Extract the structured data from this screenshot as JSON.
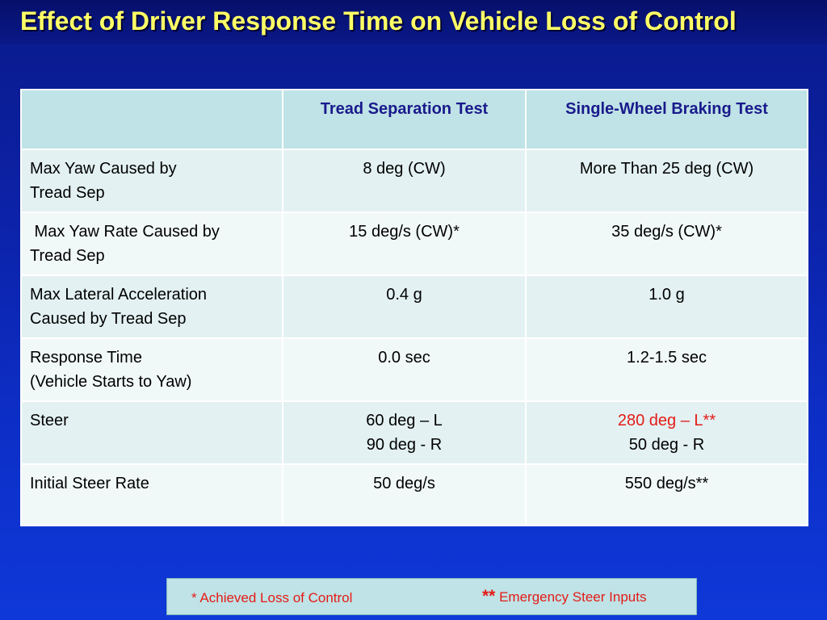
{
  "title": "Effect of Driver Response Time on Vehicle Loss of Control",
  "table": {
    "header": [
      "",
      "Tread Separation Test",
      "Single-Wheel Braking Test"
    ],
    "rows": [
      {
        "label": [
          "Max Yaw  Caused by",
          "Tread Sep"
        ],
        "tread": [
          "8 deg (CW)"
        ],
        "single": [
          "More Than 25 deg (CW)"
        ]
      },
      {
        "label": [
          " Max Yaw Rate Caused by",
          "Tread Sep"
        ],
        "tread": [
          "15 deg/s (CW)*"
        ],
        "single": [
          "35 deg/s (CW)*"
        ]
      },
      {
        "label": [
          "Max Lateral Acceleration",
          "Caused by Tread Sep"
        ],
        "tread": [
          "0.4 g"
        ],
        "single": [
          "1.0 g"
        ]
      },
      {
        "label": [
          "Response Time",
          "(Vehicle Starts to Yaw)"
        ],
        "tread": [
          "0.0 sec"
        ],
        "single": [
          "1.2-1.5 sec"
        ]
      },
      {
        "label": [
          "Steer"
        ],
        "tread": [
          "60 deg – L",
          "90 deg - R"
        ],
        "single": [
          "280 deg – L**",
          "50 deg - R"
        ]
      },
      {
        "label": [
          "Initial Steer Rate"
        ],
        "tread": [
          "50 deg/s"
        ],
        "single": [
          "550 deg/s**"
        ]
      }
    ]
  },
  "legend": {
    "note1": "* Achieved Loss of Control",
    "note2_marker": "**",
    "note2_text": " Emergency Steer Inputs"
  },
  "colors": {
    "background": "#0d2fc8",
    "title": "#ffff66",
    "header_bg": "#bfe3e6",
    "header_text": "#1a1a8c",
    "highlight": "#e41b17"
  }
}
